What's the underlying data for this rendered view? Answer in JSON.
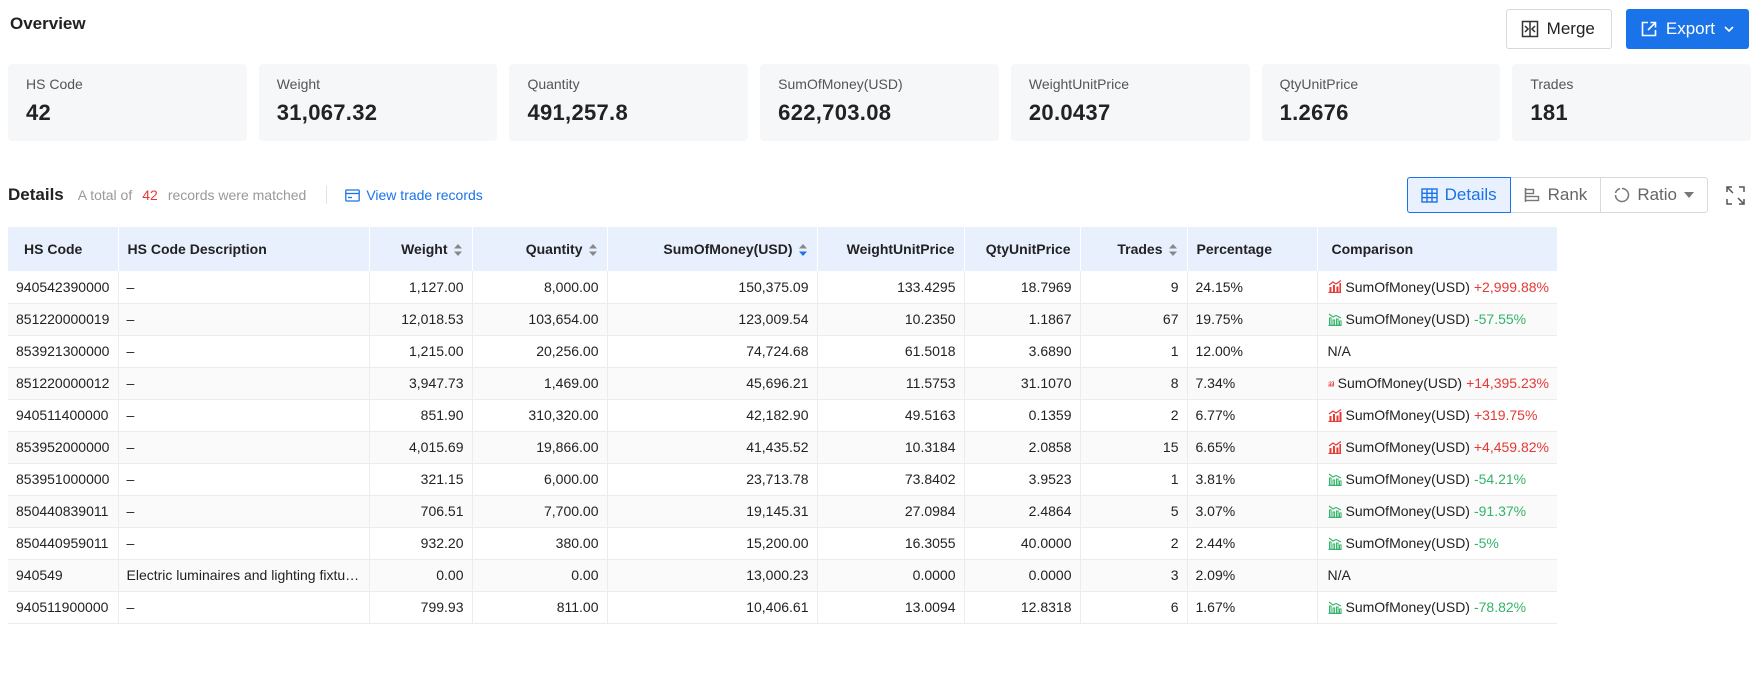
{
  "header": {
    "title": "Overview",
    "merge_label": "Merge",
    "export_label": "Export"
  },
  "stats": [
    {
      "label": "HS Code",
      "value": "42"
    },
    {
      "label": "Weight",
      "value": "31,067.32"
    },
    {
      "label": "Quantity",
      "value": "491,257.8"
    },
    {
      "label": "SumOfMoney(USD)",
      "value": "622,703.08"
    },
    {
      "label": "WeightUnitPrice",
      "value": "20.0437"
    },
    {
      "label": "QtyUnitPrice",
      "value": "1.2676"
    },
    {
      "label": "Trades",
      "value": "181"
    }
  ],
  "details": {
    "title": "Details",
    "total_prefix": "A total of",
    "count": "42",
    "total_suffix": "records were matched",
    "view_link": "View trade records",
    "tabs": {
      "details": "Details",
      "rank": "Rank",
      "ratio": "Ratio"
    }
  },
  "colors": {
    "accent": "#1a73e8",
    "up": "#e53935",
    "down": "#34b36b"
  },
  "table": {
    "columns": {
      "hs_code": "HS Code",
      "description": "HS Code Description",
      "weight": "Weight",
      "quantity": "Quantity",
      "sum": "SumOfMoney(USD)",
      "wup": "WeightUnitPrice",
      "qup": "QtyUnitPrice",
      "trades": "Trades",
      "percentage": "Percentage",
      "comparison": "Comparison"
    },
    "rows": [
      {
        "hs_code": "940542390000",
        "description": "–",
        "weight": "1,127.00",
        "quantity": "8,000.00",
        "sum": "150,375.09",
        "wup": "133.4295",
        "qup": "18.7969",
        "trades": "9",
        "percentage": "24.15%",
        "cmp_label": "SumOfMoney(USD)",
        "cmp_value": "+2,999.88%",
        "trend": "up"
      },
      {
        "hs_code": "851220000019",
        "description": "–",
        "weight": "12,018.53",
        "quantity": "103,654.00",
        "sum": "123,009.54",
        "wup": "10.2350",
        "qup": "1.1867",
        "trades": "67",
        "percentage": "19.75%",
        "cmp_label": "SumOfMoney(USD)",
        "cmp_value": "-57.55%",
        "trend": "down"
      },
      {
        "hs_code": "853921300000",
        "description": "–",
        "weight": "1,215.00",
        "quantity": "20,256.00",
        "sum": "74,724.68",
        "wup": "61.5018",
        "qup": "3.6890",
        "trades": "1",
        "percentage": "12.00%",
        "cmp_label": "N/A",
        "cmp_value": "",
        "trend": "none"
      },
      {
        "hs_code": "851220000012",
        "description": "–",
        "weight": "3,947.73",
        "quantity": "1,469.00",
        "sum": "45,696.21",
        "wup": "11.5753",
        "qup": "31.1070",
        "trades": "8",
        "percentage": "7.34%",
        "cmp_label": "SumOfMoney(USD)",
        "cmp_value": "+14,395.23%",
        "trend": "up"
      },
      {
        "hs_code": "940511400000",
        "description": "–",
        "weight": "851.90",
        "quantity": "310,320.00",
        "sum": "42,182.90",
        "wup": "49.5163",
        "qup": "0.1359",
        "trades": "2",
        "percentage": "6.77%",
        "cmp_label": "SumOfMoney(USD)",
        "cmp_value": "+319.75%",
        "trend": "up"
      },
      {
        "hs_code": "853952000000",
        "description": "–",
        "weight": "4,015.69",
        "quantity": "19,866.00",
        "sum": "41,435.52",
        "wup": "10.3184",
        "qup": "2.0858",
        "trades": "15",
        "percentage": "6.65%",
        "cmp_label": "SumOfMoney(USD)",
        "cmp_value": "+4,459.82%",
        "trend": "up"
      },
      {
        "hs_code": "853951000000",
        "description": "–",
        "weight": "321.15",
        "quantity": "6,000.00",
        "sum": "23,713.78",
        "wup": "73.8402",
        "qup": "3.9523",
        "trades": "1",
        "percentage": "3.81%",
        "cmp_label": "SumOfMoney(USD)",
        "cmp_value": "-54.21%",
        "trend": "down"
      },
      {
        "hs_code": "850440839011",
        "description": "–",
        "weight": "706.51",
        "quantity": "7,700.00",
        "sum": "19,145.31",
        "wup": "27.0984",
        "qup": "2.4864",
        "trades": "5",
        "percentage": "3.07%",
        "cmp_label": "SumOfMoney(USD)",
        "cmp_value": "-91.37%",
        "trend": "down"
      },
      {
        "hs_code": "850440959011",
        "description": "–",
        "weight": "932.20",
        "quantity": "380.00",
        "sum": "15,200.00",
        "wup": "16.3055",
        "qup": "40.0000",
        "trades": "2",
        "percentage": "2.44%",
        "cmp_label": "SumOfMoney(USD)",
        "cmp_value": "-5%",
        "trend": "down"
      },
      {
        "hs_code": "940549",
        "description": "Electric luminaires and lighting fixtur…",
        "weight": "0.00",
        "quantity": "0.00",
        "sum": "13,000.23",
        "wup": "0.0000",
        "qup": "0.0000",
        "trades": "3",
        "percentage": "2.09%",
        "cmp_label": "N/A",
        "cmp_value": "",
        "trend": "none"
      },
      {
        "hs_code": "940511900000",
        "description": "–",
        "weight": "799.93",
        "quantity": "811.00",
        "sum": "10,406.61",
        "wup": "13.0094",
        "qup": "12.8318",
        "trades": "6",
        "percentage": "1.67%",
        "cmp_label": "SumOfMoney(USD)",
        "cmp_value": "-78.82%",
        "trend": "down"
      }
    ]
  }
}
